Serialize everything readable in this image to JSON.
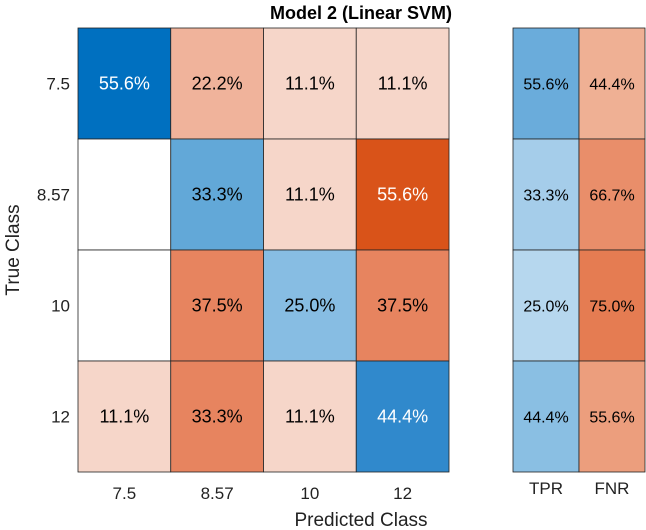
{
  "chart_data": {
    "type": "heatmap",
    "title": "Model 2 (Linear SVM)",
    "xlabel": "Predicted Class",
    "ylabel": "True Class",
    "x_categories": [
      "7.5",
      "8.57",
      "10",
      "12"
    ],
    "y_categories": [
      "7.5",
      "8.57",
      "10",
      "12"
    ],
    "cells": [
      [
        "55.6%",
        "22.2%",
        "11.1%",
        "11.1%"
      ],
      [
        "",
        "33.3%",
        "11.1%",
        "55.6%"
      ],
      [
        "",
        "37.5%",
        "25.0%",
        "37.5%"
      ],
      [
        "11.1%",
        "33.3%",
        "11.1%",
        "44.4%"
      ]
    ],
    "values": [
      [
        55.6,
        22.2,
        11.1,
        11.1
      ],
      [
        0,
        33.3,
        11.1,
        55.6
      ],
      [
        0,
        37.5,
        25.0,
        37.5
      ],
      [
        11.1,
        33.3,
        11.1,
        44.4
      ]
    ],
    "cell_colors": [
      [
        "#0070c0",
        "#f0b39b",
        "#f6d6c9",
        "#f6d6c9"
      ],
      [
        "#ffffff",
        "#62a8d8",
        "#f6d6c9",
        "#d95319"
      ],
      [
        "#ffffff",
        "#e7845f",
        "#87bde3",
        "#e7845f"
      ],
      [
        "#f6d6c9",
        "#e7845f",
        "#f6d6c9",
        "#3089cc"
      ]
    ],
    "cell_text_colors": [
      [
        "#ffffff",
        "#000000",
        "#000000",
        "#000000"
      ],
      [
        "#000000",
        "#000000",
        "#000000",
        "#ffffff"
      ],
      [
        "#000000",
        "#000000",
        "#000000",
        "#000000"
      ],
      [
        "#000000",
        "#000000",
        "#000000",
        "#ffffff"
      ]
    ],
    "summary": {
      "columns": [
        "TPR",
        "FNR"
      ],
      "rows": [
        [
          "55.6%",
          "44.4%"
        ],
        [
          "33.3%",
          "66.7%"
        ],
        [
          "25.0%",
          "75.0%"
        ],
        [
          "44.4%",
          "55.6%"
        ]
      ],
      "colors": [
        [
          "#6aacdb",
          "#efb094"
        ],
        [
          "#a5cdea",
          "#e98e6a"
        ],
        [
          "#b6d7ee",
          "#e57c52"
        ],
        [
          "#8abfe3",
          "#ec9e7d"
        ]
      ]
    }
  }
}
